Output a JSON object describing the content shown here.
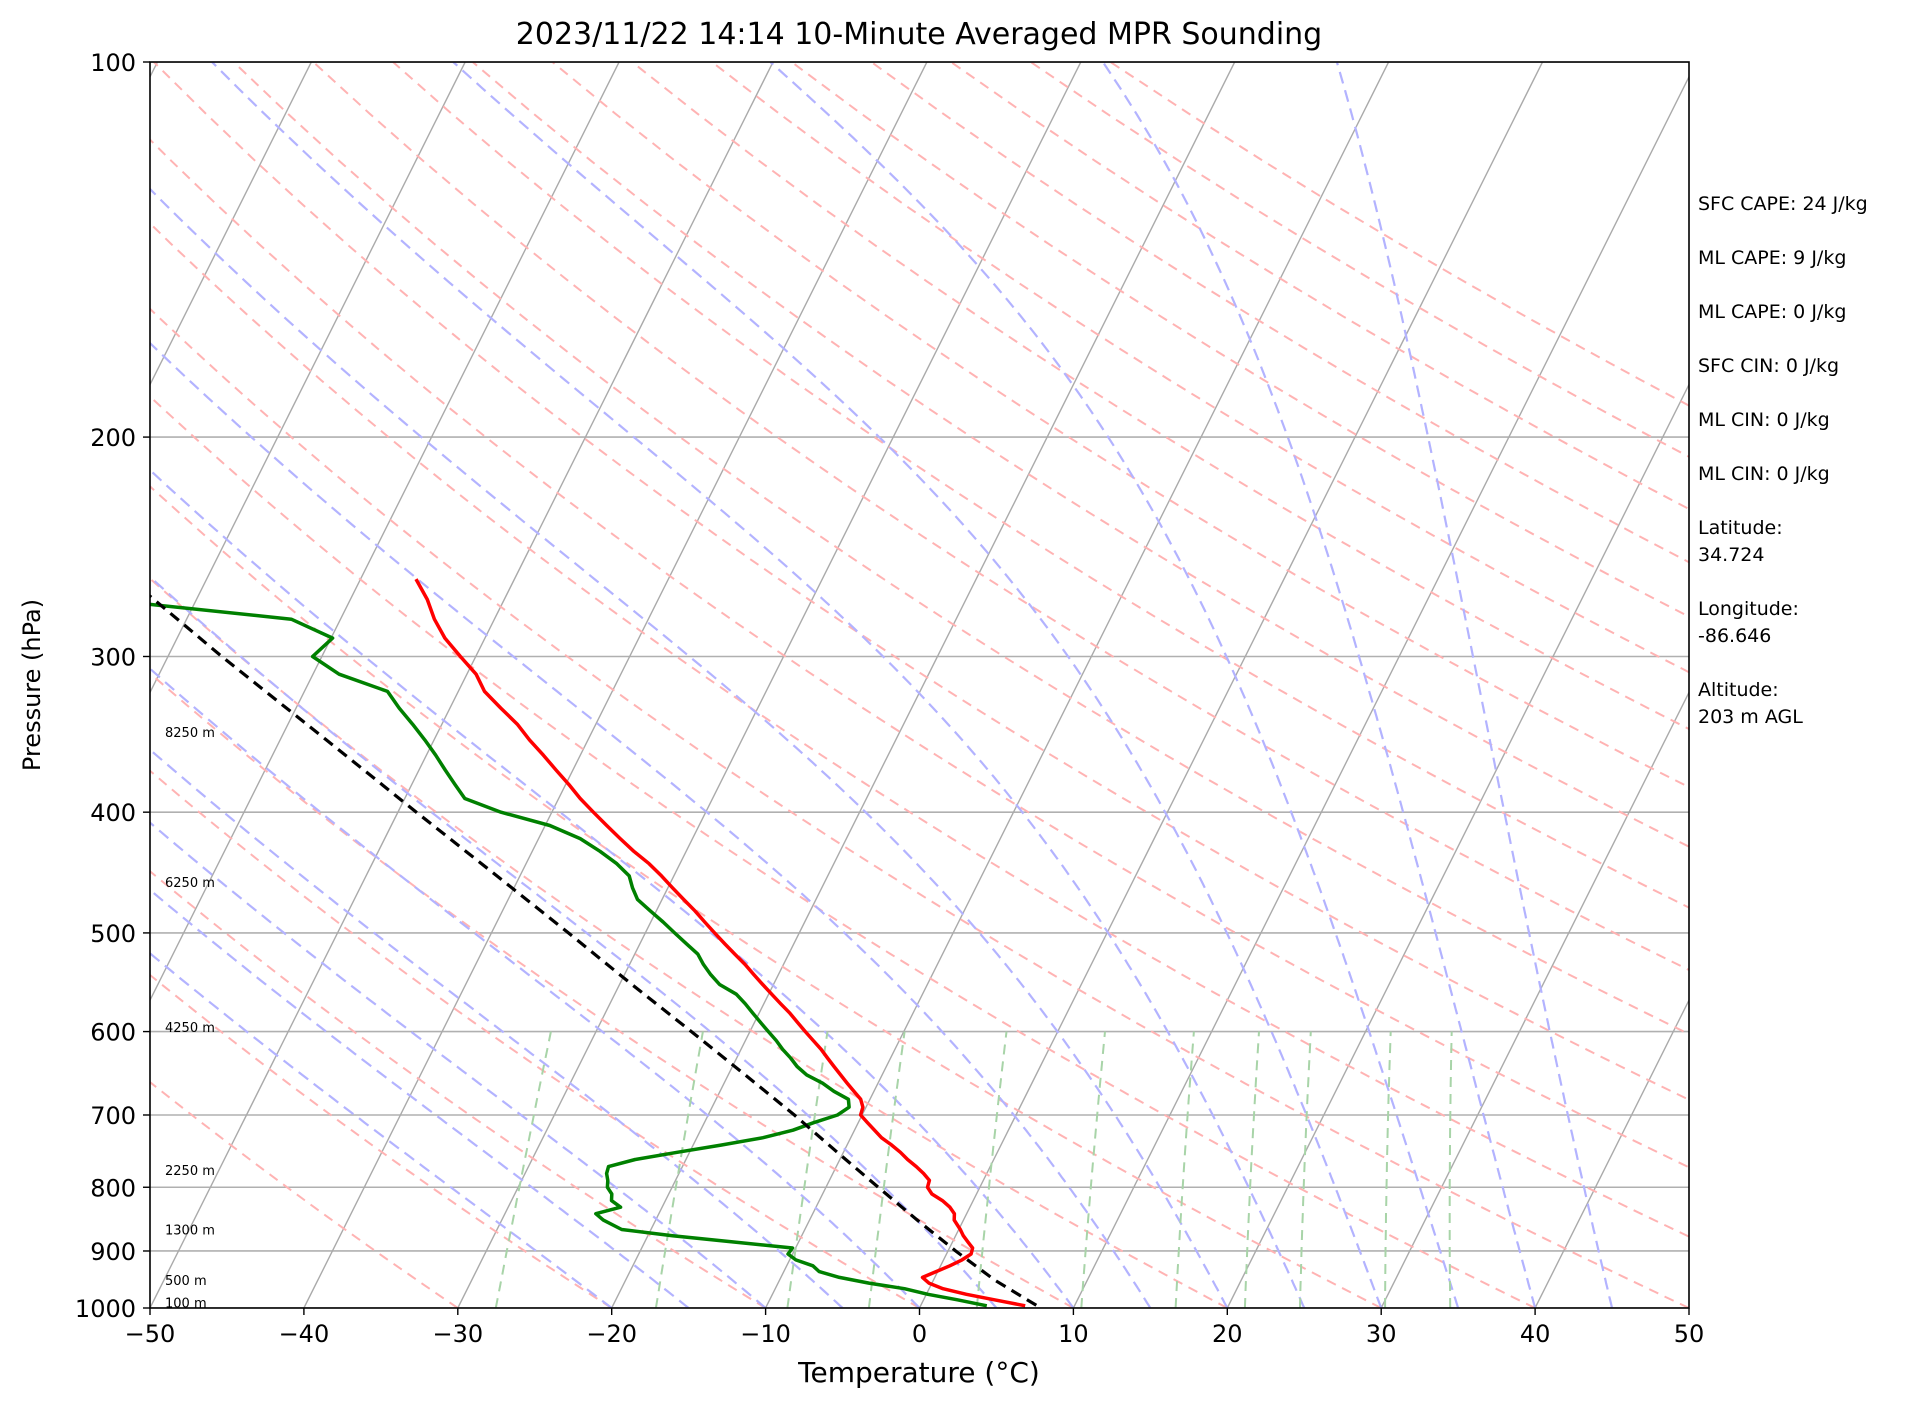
{
  "chart_data": {
    "type": "line",
    "title": "2023/11/22 14:14 10-Minute Averaged MPR Sounding",
    "xlabel": "Temperature (°C)",
    "ylabel": "Pressure (hPa)",
    "xlim": [
      -50,
      50
    ],
    "ylim": [
      1000,
      100
    ],
    "y_scale": "log",
    "x_ticks": [
      -50,
      -40,
      -30,
      -20,
      -10,
      0,
      10,
      20,
      30,
      40,
      50
    ],
    "x_tick_labels": [
      "−50",
      "−40",
      "−30",
      "−20",
      "−10",
      "0",
      "10",
      "20",
      "30",
      "40",
      "50"
    ],
    "y_ticks": [
      1000,
      900,
      800,
      700,
      600,
      500,
      400,
      300,
      200,
      100
    ],
    "y_tick_labels": [
      "1000",
      "900",
      "800",
      "700",
      "600",
      "500",
      "400",
      "300",
      "200",
      "100"
    ],
    "grid": true,
    "skew": "skew-T log-P",
    "colors": {
      "temperature": "#ff0000",
      "dewpoint": "#008000",
      "parcel": "#000000",
      "isotherm": "#aaaaaa",
      "dry_adiabat": "#ffb3b3",
      "moist_adiabat": "#b3b3ff",
      "mixing_ratio": "#a8d4a8"
    },
    "series": [
      {
        "role": "temperature",
        "p": [
          996,
          985,
          975,
          965,
          955,
          945,
          935,
          925,
          915,
          905,
          895,
          885,
          875,
          865,
          850,
          840,
          830,
          820,
          810,
          800,
          790,
          780,
          770,
          760,
          750,
          740,
          730,
          720,
          710,
          700,
          690,
          680,
          670,
          660,
          650,
          640,
          630,
          620,
          610,
          600,
          590,
          580,
          570,
          560,
          550,
          540,
          530,
          520,
          510,
          500,
          490,
          480,
          470,
          460,
          450,
          440,
          430,
          420,
          410,
          400,
          390,
          380,
          370,
          360,
          350,
          340,
          330,
          320,
          310,
          300,
          290,
          280,
          270,
          260
        ],
        "values": [
          6.8,
          4.6,
          2.6,
          0.9,
          -0.2,
          -0.8,
          -0.1,
          0.6,
          1.2,
          1.6,
          1.5,
          1.0,
          0.5,
          0.1,
          -0.6,
          -0.8,
          -1.3,
          -2.0,
          -2.9,
          -3.4,
          -3.5,
          -4.1,
          -4.8,
          -5.6,
          -6.3,
          -7.1,
          -8.0,
          -8.7,
          -9.4,
          -10.1,
          -10.2,
          -10.6,
          -11.3,
          -12.0,
          -12.7,
          -13.4,
          -14.1,
          -14.8,
          -15.6,
          -16.4,
          -17.2,
          -18.0,
          -18.9,
          -19.8,
          -20.7,
          -21.6,
          -22.5,
          -23.5,
          -24.5,
          -25.5,
          -26.5,
          -27.5,
          -28.6,
          -29.7,
          -30.8,
          -32.0,
          -33.4,
          -34.7,
          -36.0,
          -37.3,
          -38.6,
          -39.8,
          -41.1,
          -42.4,
          -43.8,
          -45.1,
          -46.7,
          -48.3,
          -49.4,
          -51.0,
          -52.6,
          -53.9,
          -55.0,
          -56.4
        ]
      },
      {
        "role": "dewpoint",
        "p": [
          996,
          985,
          975,
          965,
          955,
          945,
          935,
          925,
          915,
          905,
          895,
          885,
          875,
          865,
          850,
          840,
          830,
          820,
          810,
          800,
          790,
          780,
          770,
          760,
          750,
          740,
          730,
          720,
          710,
          700,
          690,
          680,
          670,
          660,
          650,
          640,
          630,
          620,
          610,
          600,
          590,
          580,
          570,
          560,
          550,
          540,
          530,
          520,
          510,
          500,
          490,
          480,
          470,
          460,
          450,
          440,
          430,
          420,
          410,
          400,
          390,
          380,
          370,
          360,
          350,
          340,
          330,
          320,
          310,
          300,
          290,
          280,
          270,
          260
        ],
        "values": [
          4.3,
          2.2,
          0.1,
          -1.6,
          -4.1,
          -6.2,
          -7.7,
          -8.3,
          -9.6,
          -10.3,
          -10.2,
          -14.3,
          -18.4,
          -21.9,
          -23.4,
          -24.1,
          -22.7,
          -23.5,
          -23.7,
          -24.2,
          -24.4,
          -24.7,
          -24.8,
          -23.3,
          -20.8,
          -18.2,
          -15.7,
          -14.0,
          -12.9,
          -11.6,
          -11.1,
          -11.4,
          -12.6,
          -13.6,
          -14.9,
          -15.8,
          -16.5,
          -17.3,
          -18.0,
          -18.8,
          -19.6,
          -20.4,
          -21.2,
          -22.1,
          -23.5,
          -24.4,
          -25.2,
          -25.9,
          -27.0,
          -28.1,
          -29.2,
          -30.4,
          -31.6,
          -32.3,
          -32.9,
          -34.1,
          -35.6,
          -37.3,
          -39.7,
          -43.3,
          -46.1,
          -47.2,
          -48.3,
          -49.4,
          -50.6,
          -51.9,
          -53.3,
          -54.6,
          -58.3,
          -60.6,
          -59.9,
          -63.2,
          -76.0,
          -90.0
        ]
      },
      {
        "role": "parcel",
        "p": [
          995,
          950,
          900,
          850,
          800,
          750,
          700,
          650,
          600,
          550,
          500,
          450,
          400,
          350,
          300,
          260
        ],
        "values": [
          7.5,
          4.0,
          0.5,
          -3.0,
          -6.6,
          -10.4,
          -14.4,
          -18.9,
          -23.8,
          -29.2,
          -35.0,
          -41.5,
          -48.8,
          -57.0,
          -66.5,
          -75.0
        ]
      }
    ],
    "height_labels": [
      {
        "text": "100 m",
        "p": 990
      },
      {
        "text": "500 m",
        "p": 950
      },
      {
        "text": "1300 m",
        "p": 865
      },
      {
        "text": "2250 m",
        "p": 775
      },
      {
        "text": "4250 m",
        "p": 595
      },
      {
        "text": "6250 m",
        "p": 455
      },
      {
        "text": "8250 m",
        "p": 345
      }
    ],
    "annotations": [
      "SFC CAPE: 24 J/kg",
      "ML CAPE: 9 J/kg",
      "ML CAPE: 0 J/kg",
      "SFC CIN: 0 J/kg",
      "ML CIN: 0 J/kg",
      "ML CIN: 0 J/kg",
      "Latitude:\n34.724",
      "Longitude:\n-86.646",
      "Altitude:\n203 m AGL"
    ],
    "legend": "none"
  }
}
